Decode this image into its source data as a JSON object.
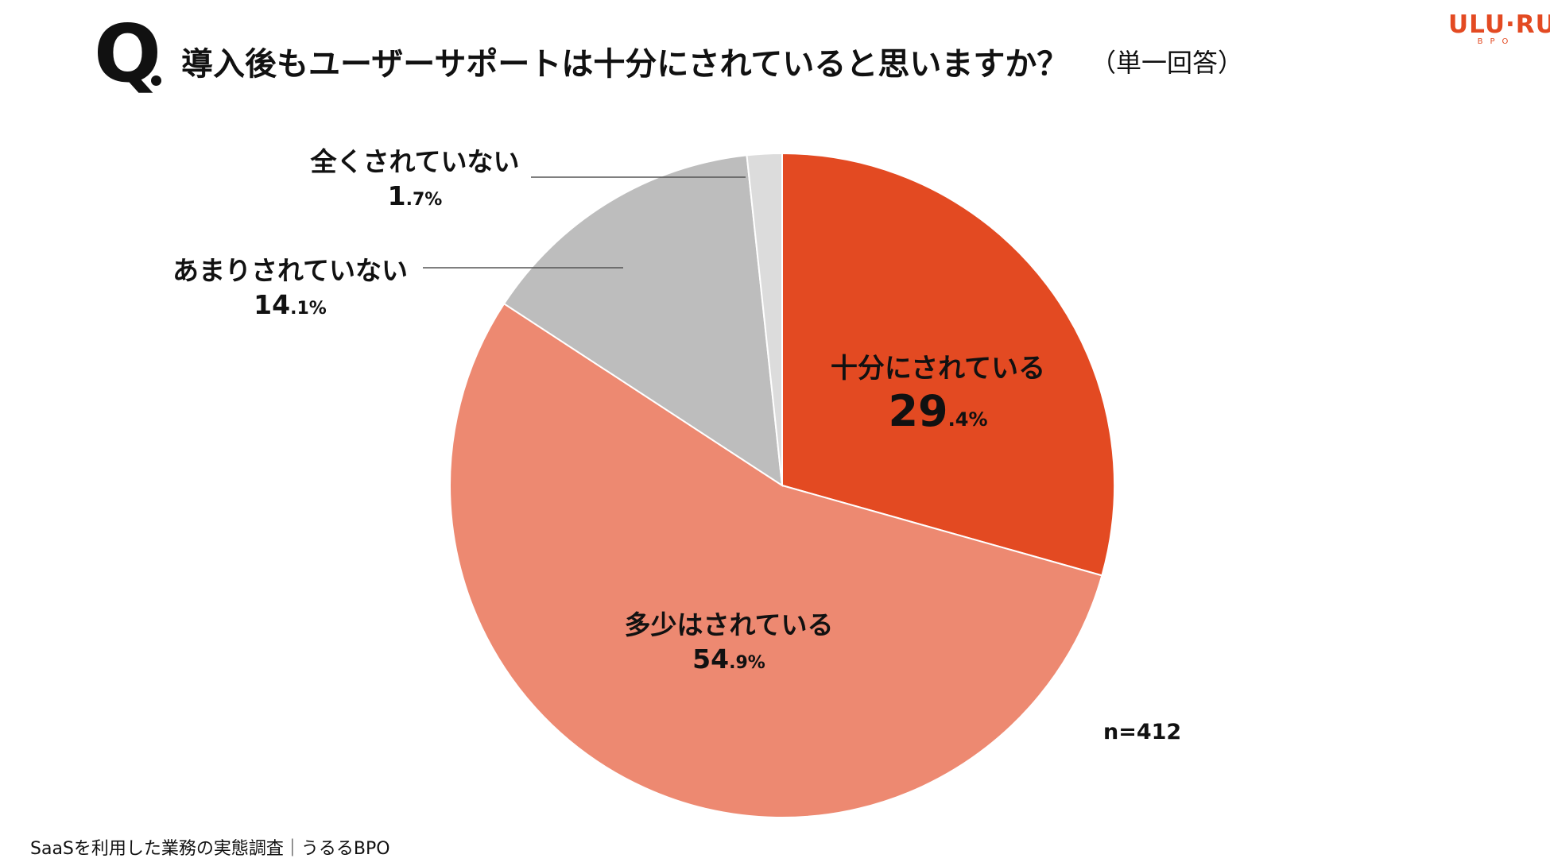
{
  "header": {
    "q_mark": "Q",
    "question": "導入後もユーザーサポートは十分にされていると思いますか？",
    "note": "（単一回答）"
  },
  "logo": {
    "main": "ULU·RU",
    "sub": "BPO",
    "color": "#e34a22"
  },
  "chart_data": {
    "type": "pie",
    "title": "導入後もユーザーサポートは十分にされていると思いますか？",
    "slices": [
      {
        "label": "十分にされている",
        "value": 29.4,
        "value_int": "29",
        "value_dec": ".4",
        "unit": "%",
        "color": "#e34a22"
      },
      {
        "label": "多少はされている",
        "value": 54.9,
        "value_int": "54",
        "value_dec": ".9",
        "unit": "%",
        "color": "#ed8971"
      },
      {
        "label": "あまりされていない",
        "value": 14.1,
        "value_int": "14",
        "value_dec": ".1",
        "unit": "%",
        "color": "#bdbdbd"
      },
      {
        "label": "全くされていない",
        "value": 1.7,
        "value_int": "1",
        "value_dec": ".7",
        "unit": "%",
        "color": "#dcdcdc"
      }
    ],
    "start": "12 o'clock",
    "direction": "clockwise",
    "n": "n=412"
  },
  "footer": {
    "source": "SaaSを利用した業務の実態調査｜うるるBPO"
  }
}
